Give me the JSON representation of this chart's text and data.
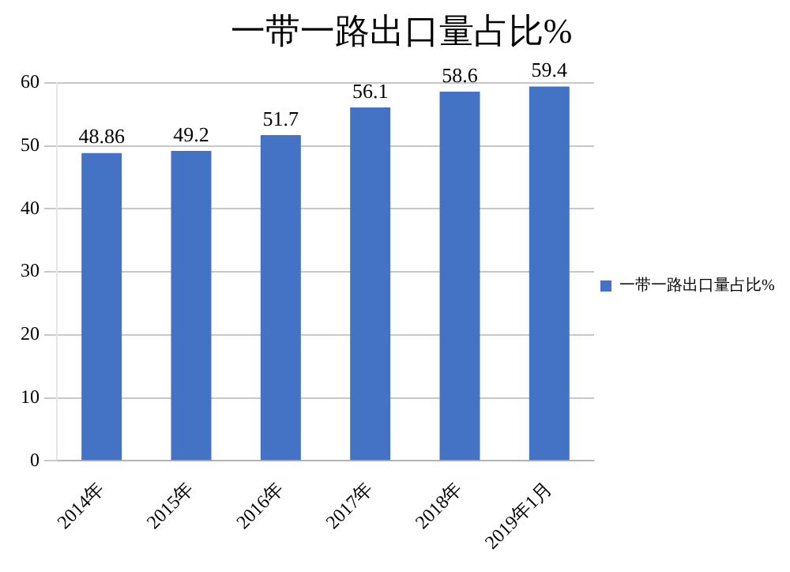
{
  "chart_data": {
    "type": "bar",
    "title": "一带一路出口量占比%",
    "categories": [
      "2014年",
      "2015年",
      "2016年",
      "2017年",
      "2018年",
      "2019年1月"
    ],
    "series": [
      {
        "name": "一带一路出口量占比%",
        "color": "#4472c4",
        "values": [
          48.86,
          49.2,
          51.7,
          56.1,
          58.6,
          59.4
        ]
      }
    ],
    "ylim": [
      0,
      60
    ],
    "yticks": [
      0,
      10,
      20,
      30,
      40,
      50,
      60
    ],
    "grid": "y",
    "legend": "right",
    "data_labels": true
  }
}
